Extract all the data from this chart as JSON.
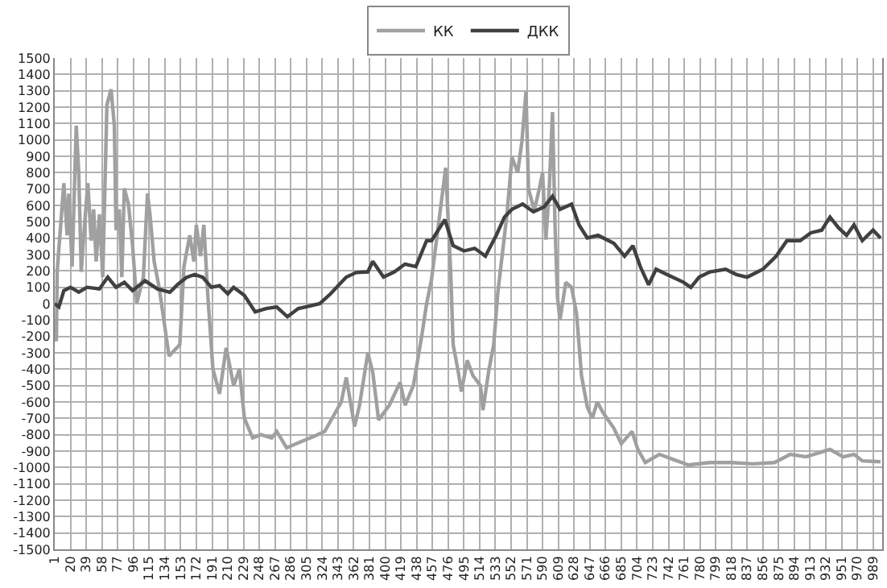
{
  "chart_data": {
    "type": "line",
    "xlim": [
      1,
      1000
    ],
    "ylim": [
      -1500,
      1500
    ],
    "xticks": [
      1,
      20,
      39,
      58,
      77,
      96,
      115,
      134,
      153,
      172,
      191,
      210,
      229,
      248,
      267,
      286,
      305,
      324,
      343,
      362,
      381,
      400,
      419,
      438,
      457,
      476,
      495,
      514,
      533,
      552,
      571,
      590,
      609,
      628,
      647,
      666,
      685,
      704,
      723,
      742,
      761,
      780,
      799,
      818,
      837,
      856,
      875,
      894,
      913,
      932,
      951,
      970,
      989
    ],
    "yticks": [
      -1500,
      -1400,
      -1300,
      -1200,
      -1100,
      -1000,
      -900,
      -800,
      -700,
      -600,
      -500,
      -400,
      -300,
      -200,
      -100,
      0,
      100,
      200,
      300,
      400,
      500,
      600,
      700,
      800,
      900,
      1000,
      1100,
      1200,
      1300,
      1400,
      1500
    ],
    "grid": true,
    "legend": "top",
    "marker": "none",
    "line_style": "solid",
    "series": [
      {
        "name": "КК",
        "color": "#a0a0a0",
        "x": [
          1,
          3,
          4,
          12,
          16,
          18,
          22,
          27,
          30,
          33,
          37,
          41,
          45,
          48,
          51,
          55,
          59,
          64,
          69,
          73,
          75,
          79,
          82,
          85,
          90,
          95,
          100,
          108,
          113,
          116,
          121,
          127,
          139,
          152,
          157,
          164,
          169,
          172,
          177,
          181,
          186,
          192,
          200,
          208,
          217,
          224,
          230,
          240,
          250,
          263,
          269,
          281,
          295,
          314,
          327,
          347,
          353,
          363,
          369,
          379,
          385,
          392,
          405,
          418,
          424,
          434,
          444,
          450,
          456,
          473,
          479,
          482,
          488,
          492,
          499,
          506,
          515,
          518,
          525,
          531,
          536,
          547,
          553,
          560,
          565,
          570,
          573,
          580,
          586,
          590,
          594,
          598,
          602,
          605,
          608,
          611,
          618,
          625,
          631,
          637,
          644,
          650,
          656,
          663,
          676,
          685,
          698,
          705,
          714,
          731,
          747,
          766,
          792,
          818,
          844,
          870,
          889,
          908,
          937,
          953,
          966,
          976,
          998
        ],
        "values": [
          -100,
          -230,
          200,
          736,
          417,
          672,
          226,
          1086,
          800,
          194,
          481,
          736,
          385,
          576,
          258,
          545,
          162,
          1213,
          1309,
          1086,
          449,
          576,
          162,
          704,
          608,
          354,
          3,
          162,
          672,
          545,
          258,
          100,
          -320,
          -250,
          226,
          417,
          258,
          481,
          290,
          481,
          35,
          -400,
          -550,
          -270,
          -500,
          -400,
          -700,
          -820,
          -800,
          -820,
          -780,
          -880,
          -850,
          -810,
          -780,
          -600,
          -450,
          -750,
          -620,
          -300,
          -420,
          -710,
          -620,
          -480,
          -620,
          -500,
          -200,
          0,
          150,
          830,
          200,
          -250,
          -410,
          -537,
          -346,
          -440,
          -500,
          -650,
          -410,
          -250,
          70,
          545,
          895,
          800,
          990,
          1294,
          700,
          570,
          700,
          800,
          390,
          700,
          1170,
          480,
          40,
          -100,
          130,
          100,
          -60,
          -440,
          -630,
          -700,
          -600,
          -665,
          -760,
          -855,
          -780,
          -890,
          -970,
          -920,
          -950,
          -985,
          -970,
          -970,
          -978,
          -970,
          -920,
          -935,
          -890,
          -935,
          -920,
          -960,
          -965
        ]
      },
      {
        "name": "ДКК",
        "color": "#404040",
        "x": [
          1,
          6,
          12,
          20,
          30,
          40,
          55,
          65,
          75,
          85,
          95,
          110,
          125,
          140,
          150,
          160,
          170,
          180,
          190,
          200,
          210,
          217,
          230,
          243,
          256,
          269,
          282,
          295,
          308,
          321,
          334,
          347,
          353,
          365,
          379,
          385,
          398,
          411,
          424,
          437,
          450,
          456,
          472,
          482,
          495,
          508,
          521,
          534,
          544,
          553,
          566,
          579,
          592,
          602,
          611,
          625,
          634,
          644,
          657,
          676,
          689,
          699,
          708,
          718,
          727,
          740,
          760,
          769,
          779,
          792,
          811,
          824,
          837,
          856,
          872,
          885,
          901,
          914,
          927,
          937,
          947,
          957,
          966,
          976,
          989,
          998
        ],
        "values": [
          0,
          -20,
          80,
          100,
          70,
          100,
          90,
          162,
          100,
          130,
          80,
          140,
          90,
          70,
          120,
          160,
          178,
          160,
          100,
          110,
          60,
          100,
          50,
          -50,
          -30,
          -20,
          -80,
          -30,
          -15,
          0,
          60,
          130,
          162,
          190,
          194,
          258,
          162,
          194,
          242,
          226,
          385,
          385,
          513,
          354,
          322,
          338,
          290,
          417,
          529,
          576,
          608,
          561,
          592,
          656,
          576,
          608,
          481,
          401,
          417,
          369,
          290,
          354,
          226,
          115,
          210,
          178,
          131,
          99,
          162,
          194,
          210,
          178,
          162,
          210,
          290,
          385,
          385,
          433,
          449,
          529,
          465,
          417,
          481,
          385,
          449,
          401
        ]
      }
    ]
  }
}
